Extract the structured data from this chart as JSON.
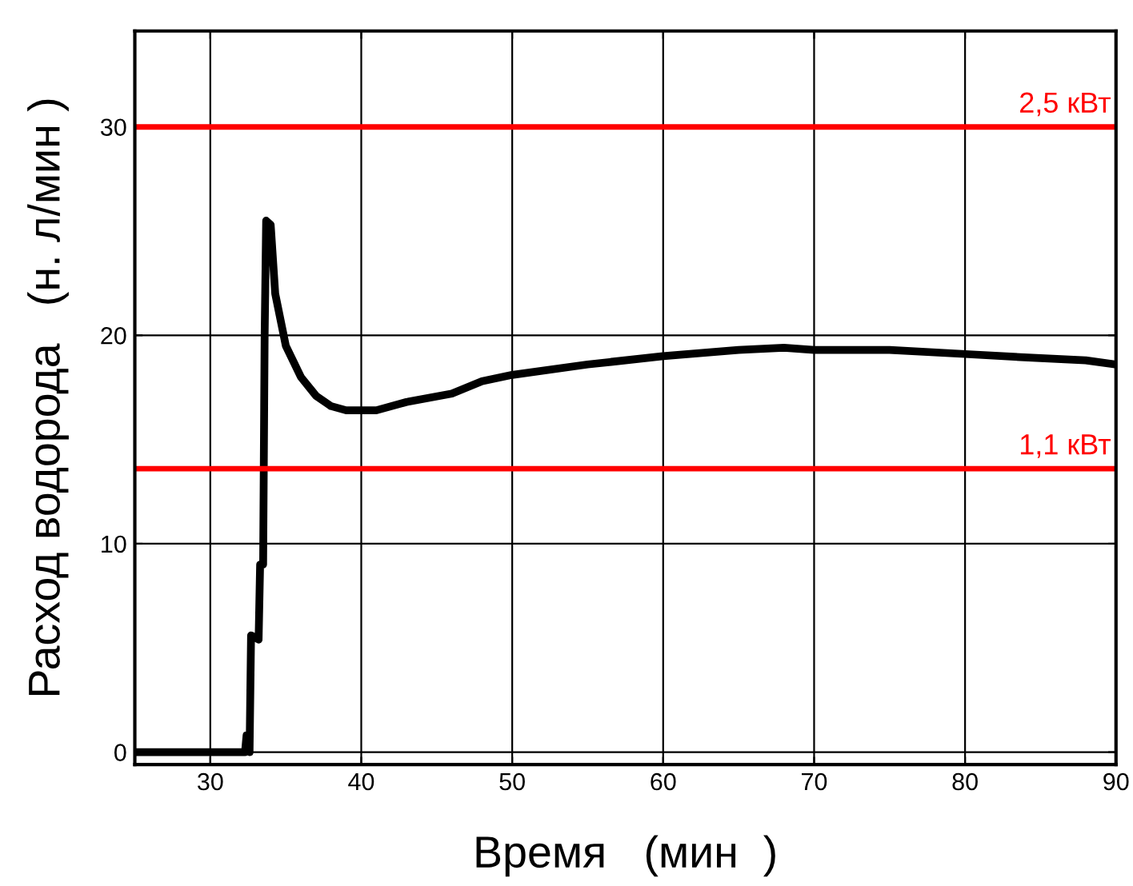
{
  "chart_data": {
    "type": "line",
    "xlabel": "Время   (мин  )",
    "ylabel": "Расход водорода   (н. л/мин )",
    "xlim": [
      25,
      90
    ],
    "ylim": [
      -0.6,
      34.6
    ],
    "xticks": [
      30,
      40,
      50,
      60,
      70,
      80,
      90
    ],
    "yticks": [
      0,
      10,
      20,
      30
    ],
    "grid": true,
    "marker": "none",
    "line_style": "solid",
    "series": [
      {
        "color": "#000000",
        "x": [
          25,
          28,
          30,
          32.3,
          32.4,
          32.5,
          32.6,
          32.7,
          33.2,
          33.3,
          33.5,
          33.6,
          33.7,
          34.0,
          34.3,
          35,
          36,
          37,
          38,
          39,
          41,
          43,
          46,
          48,
          50,
          55,
          60,
          65,
          68,
          70,
          75,
          80,
          85,
          88,
          90
        ],
        "values": [
          0,
          0,
          0,
          0,
          0.8,
          0.8,
          0,
          5.6,
          5.4,
          9,
          9,
          20,
          25.5,
          25.3,
          22,
          19.5,
          18,
          17.1,
          16.6,
          16.4,
          16.4,
          16.8,
          17.2,
          17.8,
          18.1,
          18.6,
          19.0,
          19.3,
          19.4,
          19.3,
          19.3,
          19.1,
          18.9,
          18.8,
          18.6
        ]
      }
    ],
    "ref_lines": [
      {
        "axis": "y",
        "value": 30,
        "label": "2,5 кВт",
        "color": "#ff0000",
        "line_style": "solid"
      },
      {
        "axis": "y",
        "value": 13.6,
        "label": "1,1 кВт",
        "color": "#ff0000",
        "line_style": "solid"
      }
    ]
  }
}
